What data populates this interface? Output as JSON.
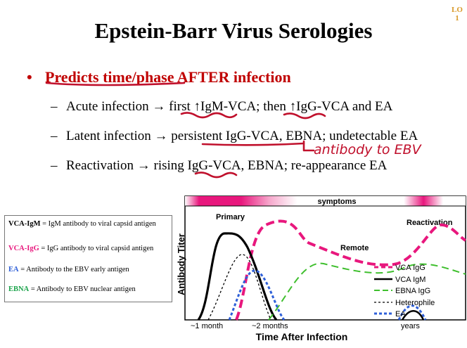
{
  "lo_label": "LO 1",
  "title": "Epstein-Barr Virus Serologies",
  "bullet": "Predicts time/phase AFTER infection",
  "lines": [
    "Acute infection → first ↑IgM-VCA; then ↑IgG-VCA and EA",
    "Latent infection → persistent IgG-VCA, EBNA; undetectable EA",
    "Reactivation → rising IgG-VCA, EBNA; re-appearance EA"
  ],
  "dash": "–",
  "handwriting": "antibody to EBV",
  "legend_box": [
    {
      "term": "VCA-IgM",
      "desc": " = IgM antibody to viral capsid antigen",
      "color": "#000000"
    },
    {
      "term": "VCA-IgG",
      "desc": " = IgG antibody to viral capsid antigen",
      "color": "#e8177d"
    },
    {
      "term": "EA",
      "desc": " = Antibody to the EBV early antigen",
      "color": "#2e5fd8"
    },
    {
      "term": "EBNA",
      "desc": " = Antibody to EBV nuclear antigen",
      "color": "#1aa34a"
    }
  ],
  "graph": {
    "symptoms_label": "symptoms",
    "y_label": "Antibody Titer",
    "x_label": "Time After Infection",
    "ticks": [
      "~1 month",
      "~2 months",
      "years"
    ],
    "annotations": [
      "Primary",
      "Reactivation",
      "Remote"
    ],
    "legend": [
      {
        "label": "VCA IgG",
        "color": "#e8177d"
      },
      {
        "label": "VCA IgM",
        "color": "#000000"
      },
      {
        "label": "EBNA IgG",
        "color": "#3fbf2e"
      },
      {
        "label": "Heterophile",
        "color": "#000000"
      },
      {
        "label": "EA",
        "color": "#2e5fd8"
      }
    ]
  }
}
